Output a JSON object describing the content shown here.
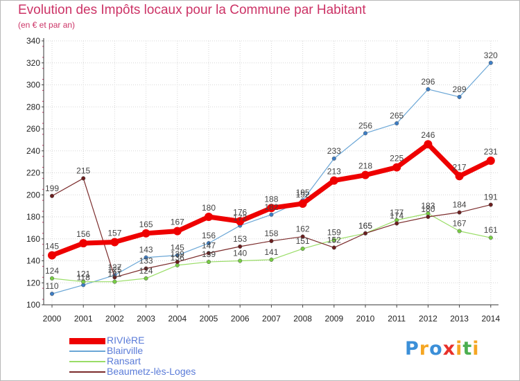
{
  "chart_data": {
    "type": "line",
    "title": "Evolution des Impôts locaux pour la Commune par Habitant",
    "subtitle": "(en € et par an)",
    "xlabel": "",
    "ylabel": "",
    "ylim": [
      100,
      340
    ],
    "yticks": [
      100,
      120,
      140,
      160,
      180,
      200,
      220,
      240,
      260,
      280,
      300,
      320,
      340
    ],
    "categories": [
      "2000",
      "2001",
      "2002",
      "2003",
      "2004",
      "2005",
      "2006",
      "2007",
      "2008",
      "2009",
      "2010",
      "2011",
      "2012",
      "2013",
      "2014"
    ],
    "grid": true,
    "legend_position": "bottom-left",
    "series": [
      {
        "name": "Blairville",
        "color": "#6aa6d6",
        "marker": "#3d7dc4",
        "width": 1.2,
        "values": [
          110,
          118,
          127,
          143,
          145,
          156,
          172,
          182,
          195,
          233,
          256,
          265,
          296,
          289,
          320
        ]
      },
      {
        "name": "Ransart",
        "color": "#99dd66",
        "marker": "#77cc44",
        "width": 1.2,
        "values": [
          124,
          121,
          121,
          124,
          136,
          139,
          140,
          141,
          151,
          159,
          165,
          177,
          183,
          167,
          161
        ]
      },
      {
        "name": "Beaumetz-lès-Loges",
        "color": "#7a2a2a",
        "marker": "#6a1f1f",
        "width": 1.2,
        "values": [
          199,
          215,
          125,
          133,
          139,
          147,
          153,
          158,
          162,
          152,
          165,
          174,
          180,
          184,
          191
        ]
      },
      {
        "name": "RIVIèRE",
        "color": "#ee0000",
        "marker": "#ee0000",
        "width": 7,
        "values": [
          145,
          156,
          157,
          165,
          167,
          180,
          176,
          188,
          192,
          213,
          218,
          225,
          246,
          217,
          231
        ]
      }
    ],
    "legend_order": [
      "RIVIèRE",
      "Blairville",
      "Ransart",
      "Beaumetz-lès-Loges"
    ]
  },
  "brand": {
    "letters": [
      "P",
      "r",
      "o",
      "x",
      "i",
      "t",
      "i"
    ],
    "colors": [
      "#3b8fd8",
      "#f5a623",
      "#3b8fd8",
      "#e8302a",
      "#f5a623",
      "#4caf50",
      "#f5a623"
    ]
  }
}
